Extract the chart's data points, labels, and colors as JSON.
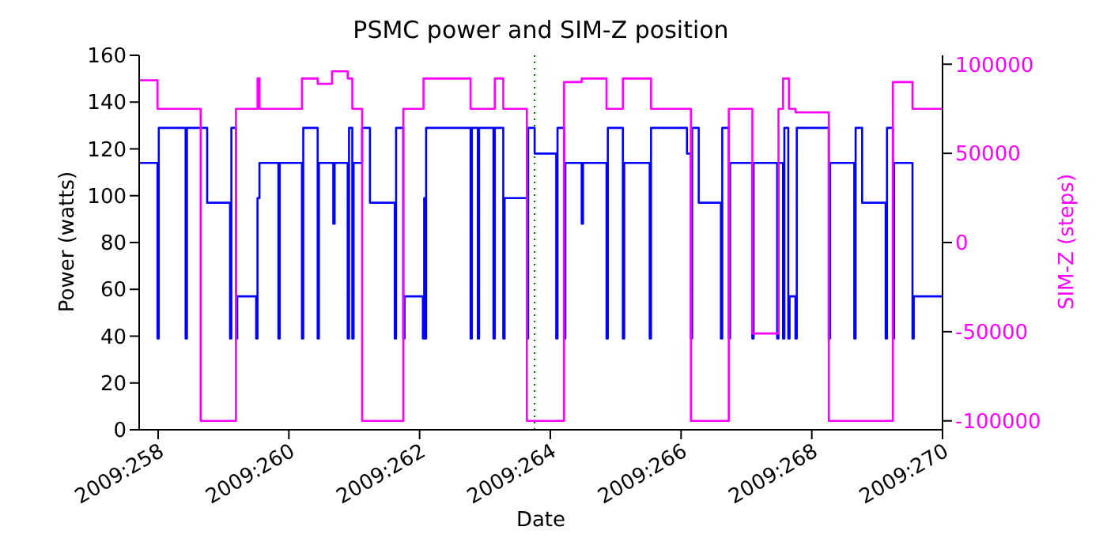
{
  "chart_data": {
    "type": "step",
    "title": "PSMC power and SIM-Z position",
    "xlabel": "Date",
    "ylabel": "Power (watts)",
    "y2label": "SIM-Z (steps)",
    "xlim": [
      "2009-09-14T17:02",
      "2009-09-27"
    ],
    "xticks": [
      {
        "value": "2009-09-15",
        "label": "2009:258"
      },
      {
        "value": "2009-09-17",
        "label": "2009:260"
      },
      {
        "value": "2009-09-19",
        "label": "2009:262"
      },
      {
        "value": "2009-09-21",
        "label": "2009:264"
      },
      {
        "value": "2009-09-23",
        "label": "2009:266"
      },
      {
        "value": "2009-09-25",
        "label": "2009:268"
      },
      {
        "value": "2009-09-27",
        "label": "2009:270"
      }
    ],
    "ylim": [
      0,
      160
    ],
    "yticks": [
      0,
      20,
      40,
      60,
      80,
      100,
      120,
      140,
      160
    ],
    "y2lim": [
      -105000,
      105000
    ],
    "y2ticks": [
      -100000,
      -50000,
      0,
      50000,
      100000
    ],
    "marker": "none",
    "line_style": "solid",
    "ref_lines": [
      {
        "axis": "x",
        "value": "2009-09-20T18:14",
        "color": "#006400",
        "line_style": "dotted"
      }
    ],
    "series": [
      {
        "color": "#0000ff",
        "x": [
          "2009-09-14T17:02",
          "2009-09-14T23:46",
          "2009-09-15T00:14",
          "2009-09-15T10:05",
          "2009-09-15T10:34",
          "2009-09-15T18:00",
          "2009-09-16T02:24",
          "2009-09-16T02:53",
          "2009-09-16T04:34",
          "2009-09-16T05:02",
          "2009-09-16T12:00",
          "2009-09-16T12:29",
          "2009-09-16T13:12",
          "2009-09-16T20:10",
          "2009-09-16T20:38",
          "2009-09-17T04:48",
          "2009-09-17T05:17",
          "2009-09-17T10:34",
          "2009-09-17T11:02",
          "2009-09-17T16:19",
          "2009-09-17T16:48",
          "2009-09-17T21:36",
          "2009-09-17T22:05",
          "2009-09-17T23:17",
          "2009-09-17T23:46",
          "2009-09-18T02:53",
          "2009-09-18T05:46",
          "2009-09-18T14:53",
          "2009-09-18T15:22",
          "2009-09-18T18:00",
          "2009-09-18T18:29",
          "2009-09-19T01:12",
          "2009-09-19T01:41",
          "2009-09-19T01:55",
          "2009-09-19T02:24",
          "2009-09-19T18:43",
          "2009-09-19T19:12",
          "2009-09-19T21:22",
          "2009-09-19T21:50",
          "2009-09-20T03:07",
          "2009-09-20T03:36",
          "2009-09-20T06:43",
          "2009-09-20T07:12",
          "2009-09-20T15:22",
          "2009-09-20T15:50",
          "2009-09-20T18:14",
          "2009-09-21T02:10",
          "2009-09-21T02:38",
          "2009-09-21T05:02",
          "2009-09-21T05:31",
          "2009-09-21T11:31",
          "2009-09-21T12:00",
          "2009-09-21T20:38",
          "2009-09-21T21:07",
          "2009-09-22T02:38",
          "2009-09-22T03:07",
          "2009-09-22T12:29",
          "2009-09-22T12:58",
          "2009-09-23T02:10",
          "2009-09-23T03:36",
          "2009-09-23T04:05",
          "2009-09-23T06:29",
          "2009-09-23T14:38",
          "2009-09-23T15:07",
          "2009-09-23T17:31",
          "2009-09-23T18:00",
          "2009-09-24T02:10",
          "2009-09-24T02:38",
          "2009-09-24T11:17",
          "2009-09-24T11:46",
          "2009-09-24T13:26",
          "2009-09-24T13:55",
          "2009-09-24T15:22",
          "2009-09-24T15:50",
          "2009-09-24T18:00",
          "2009-09-24T18:29",
          "2009-09-25T06:14",
          "2009-09-25T06:43",
          "2009-09-25T15:36",
          "2009-09-25T16:05",
          "2009-09-25T18:29",
          "2009-09-26T03:07",
          "2009-09-26T03:36",
          "2009-09-26T05:46",
          "2009-09-26T06:14",
          "2009-09-26T12:58",
          "2009-09-26T13:26",
          "2009-09-27T00:00"
        ],
        "values": [
          114,
          39,
          129,
          39,
          129,
          97,
          39,
          129,
          39,
          57,
          39,
          99,
          114,
          39,
          114,
          39,
          129,
          39,
          114,
          88,
          114,
          39,
          129,
          39,
          114,
          129,
          97,
          39,
          129,
          39,
          57,
          39,
          99,
          39,
          129,
          39,
          129,
          39,
          129,
          39,
          129,
          39,
          99,
          39,
          129,
          118,
          39,
          129,
          39,
          114,
          88,
          114,
          39,
          129,
          39,
          114,
          39,
          129,
          118,
          39,
          129,
          97,
          39,
          129,
          39,
          114,
          39,
          114,
          39,
          114,
          39,
          129,
          39,
          57,
          39,
          129,
          39,
          114,
          39,
          129,
          97,
          39,
          129,
          39,
          114,
          39,
          57,
          57
        ]
      },
      {
        "color": "#ff00ff",
        "axis": "y2",
        "x": [
          "2009-09-14T17:02",
          "2009-09-14T23:46",
          "2009-09-15T15:36",
          "2009-09-16T04:34",
          "2009-09-16T12:29",
          "2009-09-16T13:12",
          "2009-09-17T04:48",
          "2009-09-17T10:34",
          "2009-09-17T15:50",
          "2009-09-17T21:36",
          "2009-09-17T23:17",
          "2009-09-18T02:53",
          "2009-09-18T18:00",
          "2009-09-19T01:26",
          "2009-09-19T18:43",
          "2009-09-20T03:36",
          "2009-09-20T06:43",
          "2009-09-20T15:22",
          "2009-09-21T05:02",
          "2009-09-21T11:31",
          "2009-09-21T20:38",
          "2009-09-22T02:38",
          "2009-09-22T12:58",
          "2009-09-23T03:36",
          "2009-09-23T17:31",
          "2009-09-24T02:10",
          "2009-09-24T11:46",
          "2009-09-24T13:26",
          "2009-09-24T15:36",
          "2009-09-24T18:00",
          "2009-09-25T06:14",
          "2009-09-26T05:46",
          "2009-09-26T12:58",
          "2009-09-27T00:00"
        ],
        "values": [
          91000,
          75000,
          -100000,
          75000,
          92000,
          75000,
          92000,
          89000,
          96000,
          92000,
          75000,
          -100000,
          75000,
          92000,
          75000,
          92000,
          75000,
          -100000,
          90000,
          92000,
          75000,
          92000,
          75000,
          -100000,
          75000,
          -51000,
          75000,
          92000,
          75000,
          73000,
          -100000,
          90000,
          75000,
          75000
        ]
      }
    ]
  }
}
